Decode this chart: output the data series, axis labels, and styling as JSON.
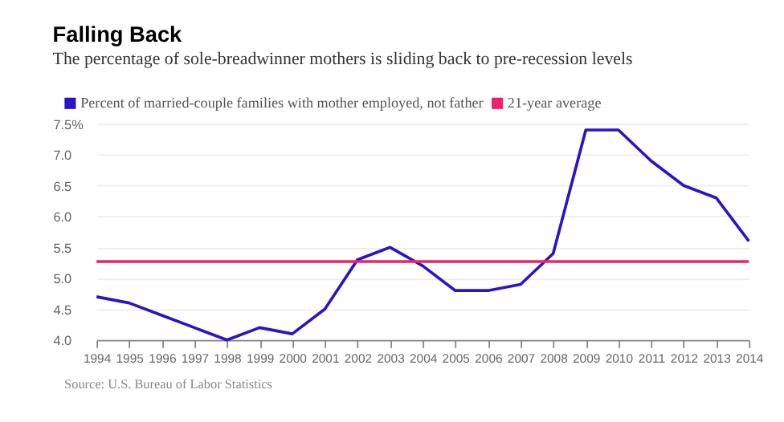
{
  "chart_data": {
    "type": "line",
    "title": "Falling Back",
    "subtitle": "The percentage of sole-breadwinner mothers is sliding back to pre-recession levels",
    "x": [
      1994,
      1995,
      1996,
      1997,
      1998,
      1999,
      2000,
      2001,
      2002,
      2003,
      2004,
      2005,
      2006,
      2007,
      2008,
      2009,
      2010,
      2011,
      2012,
      2013,
      2014
    ],
    "series": [
      {
        "name": "Percent of married-couple families with mother employed, not father",
        "color": "#2b14c8",
        "values": [
          4.7,
          4.6,
          4.4,
          4.2,
          4.0,
          4.2,
          4.1,
          4.5,
          5.3,
          5.5,
          5.2,
          4.8,
          4.8,
          4.9,
          5.4,
          7.4,
          7.4,
          6.9,
          6.5,
          6.3,
          5.6
        ]
      }
    ],
    "ref_lines": [
      {
        "axis": "y",
        "value": 5.27,
        "label": "21-year average",
        "color": "#f0206a"
      }
    ],
    "xlim": [
      1994,
      2014
    ],
    "xticks": [
      1994,
      1995,
      1996,
      1997,
      1998,
      1999,
      2000,
      2001,
      2002,
      2003,
      2004,
      2005,
      2006,
      2007,
      2008,
      2009,
      2010,
      2011,
      2012,
      2013,
      2014
    ],
    "ylim": [
      4.0,
      7.5
    ],
    "yticks": [
      {
        "value": 4.0,
        "label": "4.0"
      },
      {
        "value": 4.5,
        "label": "4.5"
      },
      {
        "value": 5.0,
        "label": "5.0"
      },
      {
        "value": 5.5,
        "label": "5.5"
      },
      {
        "value": 6.0,
        "label": "6.0"
      },
      {
        "value": 6.5,
        "label": "6.5"
      },
      {
        "value": 7.0,
        "label": "7.0"
      },
      {
        "value": 7.5,
        "label": "7.5%"
      }
    ],
    "grid": "y",
    "legend": "top left",
    "marker": "none",
    "line_style": "solid",
    "annotations": [
      "Source: U.S. Bureau of Labor Statistics"
    ]
  }
}
